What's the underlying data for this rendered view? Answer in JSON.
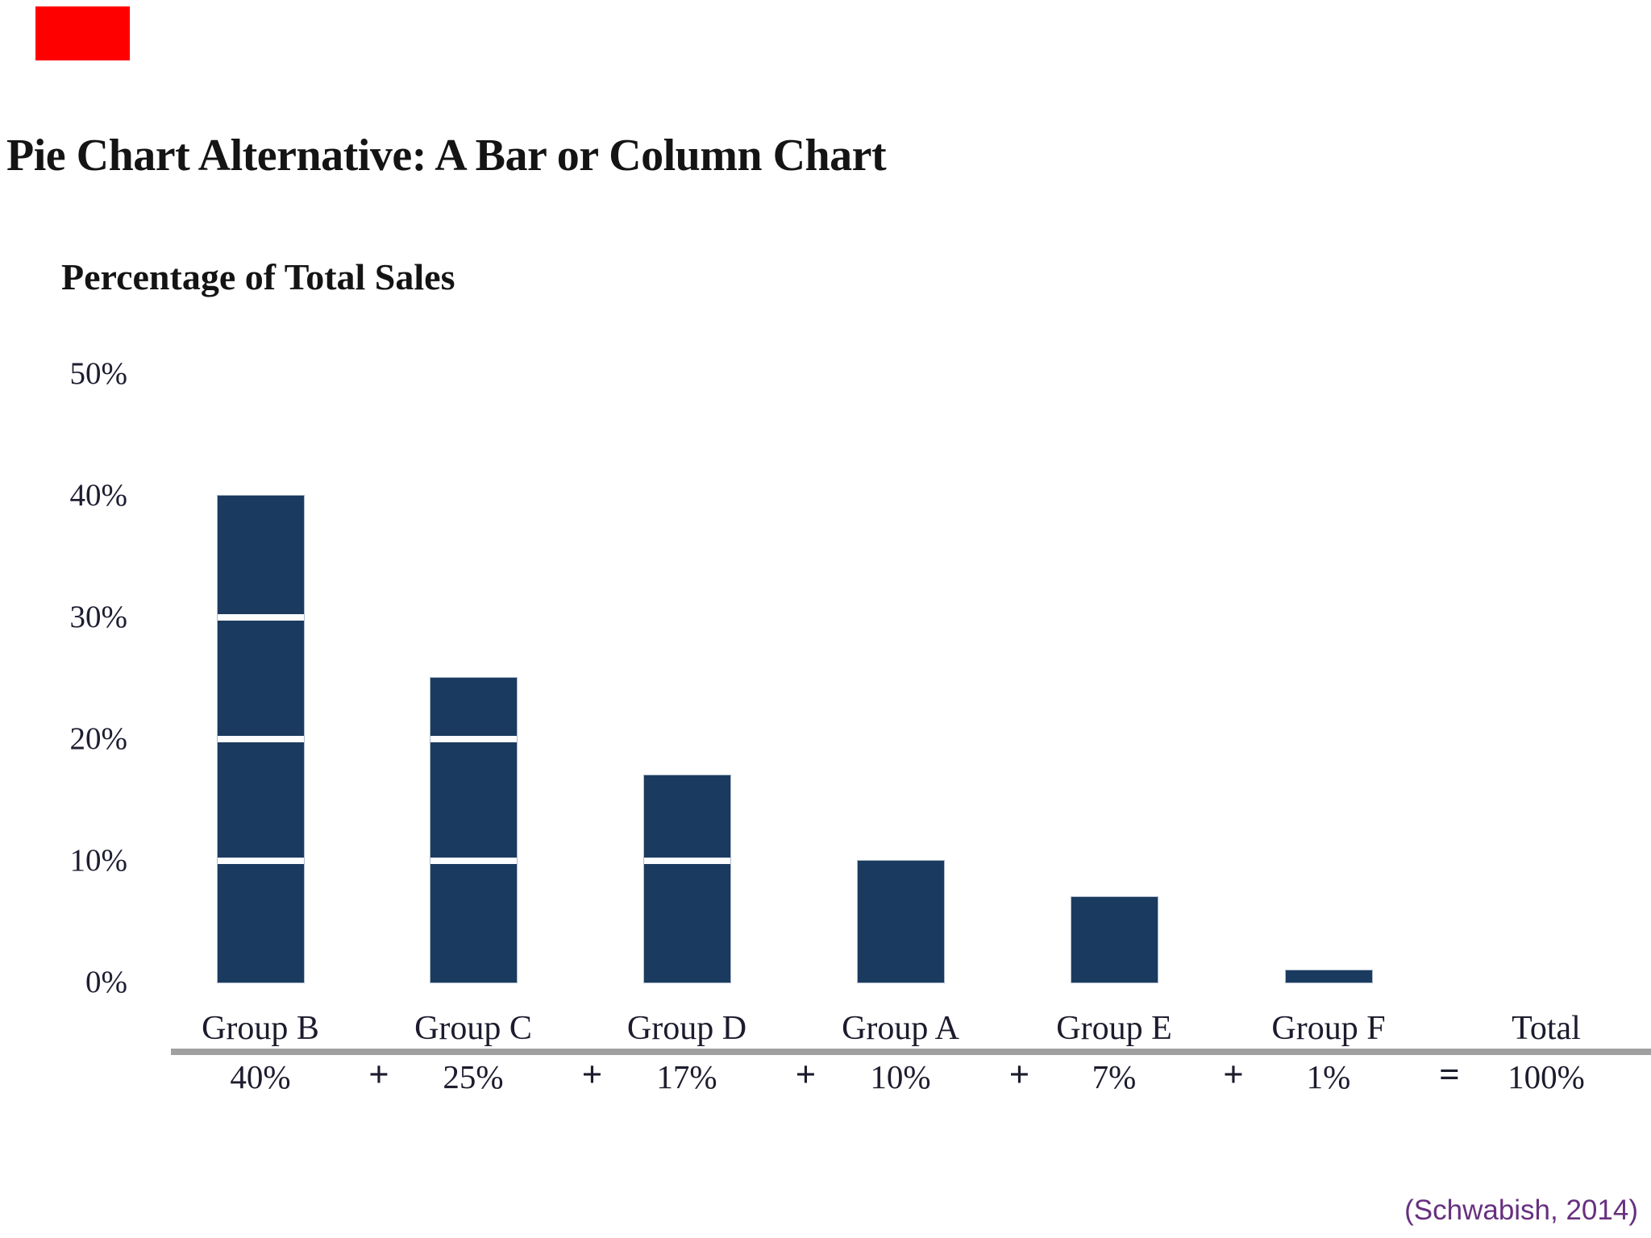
{
  "page": {
    "title": "Pie Chart Alternative: A Bar or Column Chart",
    "citation": "(Schwabish, 2014)",
    "citation_color": "#67307f",
    "red_marker_color": "#fe0000",
    "background_color": "#ffffff"
  },
  "chart_data": {
    "type": "bar",
    "title": "Percentage of Total Sales",
    "categories": [
      "Group B",
      "Group C",
      "Group D",
      "Group A",
      "Group E",
      "Group F"
    ],
    "values": [
      40,
      25,
      17,
      10,
      7,
      1
    ],
    "value_labels": [
      "40%",
      "25%",
      "17%",
      "10%",
      "7%",
      "1%"
    ],
    "operators": [
      "+",
      "+",
      "+",
      "+",
      "+",
      "="
    ],
    "total": {
      "label": "Total",
      "value": 100,
      "value_label": "100%"
    },
    "ytick_labels": [
      "50%",
      "40%",
      "30%",
      "20%",
      "10%",
      "0%"
    ],
    "ytick_values": [
      50,
      40,
      30,
      20,
      10,
      0
    ],
    "ylim": [
      0,
      50
    ],
    "xlabel": "",
    "ylabel": "Percentage of Total Sales",
    "grid": false,
    "legend": "none",
    "bar_color": "#1b3a5f",
    "segment_divider_color": "#fbfdff",
    "segment_interval_pct": 10,
    "baseline_rule_color": "#a0a0a0"
  }
}
